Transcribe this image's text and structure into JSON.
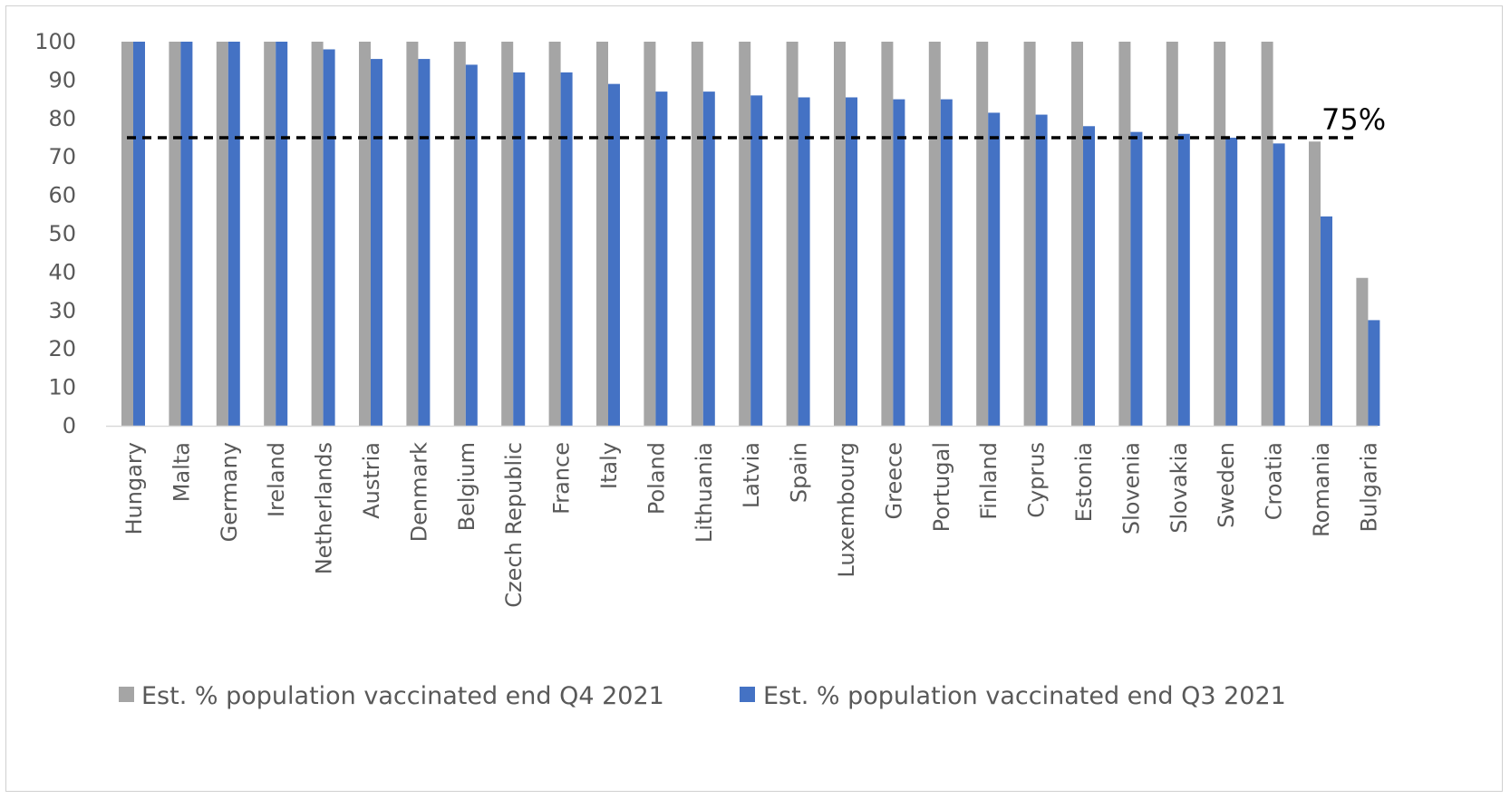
{
  "chart_data": {
    "type": "bar",
    "title": "",
    "xlabel": "",
    "ylabel": "",
    "ylim": [
      0,
      100
    ],
    "yticks": [
      0,
      10,
      20,
      30,
      40,
      50,
      60,
      70,
      80,
      90,
      100
    ],
    "grid": false,
    "legend_position": "bottom",
    "categories": [
      "Hungary",
      "Malta",
      "Germany",
      "Ireland",
      "Netherlands",
      "Austria",
      "Denmark",
      "Belgium",
      "Czech Republic",
      "France",
      "Italy",
      "Poland",
      "Lithuania",
      "Latvia",
      "Spain",
      "Luxembourg",
      "Greece",
      "Portugal",
      "Finland",
      "Cyprus",
      "Estonia",
      "Slovenia",
      "Slovakia",
      "Sweden",
      "Croatia",
      "Romania",
      "Bulgaria"
    ],
    "series": [
      {
        "name": "Est. % population vaccinated end Q4 2021",
        "color": "#a5a5a5",
        "values": [
          100,
          100,
          100,
          100,
          100,
          100,
          100,
          100,
          100,
          100,
          100,
          100,
          100,
          100,
          100,
          100,
          100,
          100,
          100,
          100,
          100,
          100,
          100,
          100,
          100,
          74,
          38.5
        ]
      },
      {
        "name": "Est. % population vaccinated end Q3 2021",
        "color": "#4472c4",
        "values": [
          100,
          100,
          100,
          100,
          98,
          95.5,
          95.5,
          94,
          92,
          92,
          89,
          87,
          87,
          86,
          85.5,
          85.5,
          85,
          85,
          81.5,
          81,
          78,
          76.5,
          76,
          75,
          73.5,
          54.5,
          27.5
        ]
      }
    ],
    "reference_line": {
      "value": 75,
      "label": "75%",
      "style": "dashed",
      "color": "#000000"
    }
  }
}
